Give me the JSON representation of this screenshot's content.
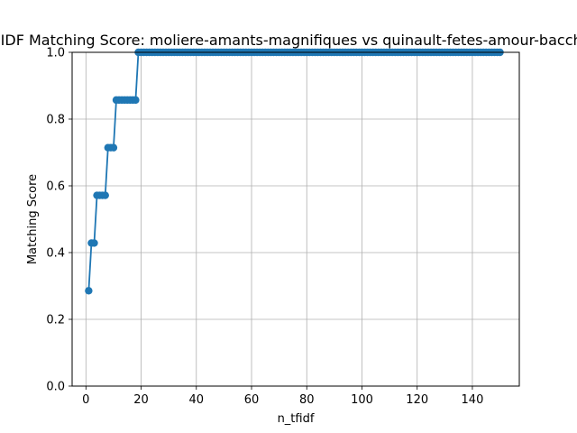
{
  "chart_data": {
    "type": "line",
    "title": "TF-IDF Matching Score: moliere-amants-magnifiques vs quinault-fetes-amour-bacchus",
    "xlabel": "n_tfidf",
    "ylabel": "Matching Score",
    "xlim": [
      -5,
      157
    ],
    "ylim": [
      0,
      1
    ],
    "xticks": [
      "0",
      "20",
      "40",
      "60",
      "80",
      "100",
      "120",
      "140"
    ],
    "yticks": [
      "0.0",
      "0.2",
      "0.4",
      "0.6",
      "0.8",
      "1.0"
    ],
    "grid": true,
    "series": [
      {
        "color": "#1f77b4",
        "marker": "circle",
        "segments": [
          {
            "from": 1,
            "to": 1,
            "value": 0.2857
          },
          {
            "from": 2,
            "to": 3,
            "value": 0.4286
          },
          {
            "from": 4,
            "to": 7,
            "value": 0.5714
          },
          {
            "from": 8,
            "to": 10,
            "value": 0.7143
          },
          {
            "from": 11,
            "to": 18,
            "value": 0.8571
          },
          {
            "from": 19,
            "to": 150,
            "value": 1.0
          }
        ]
      }
    ]
  }
}
